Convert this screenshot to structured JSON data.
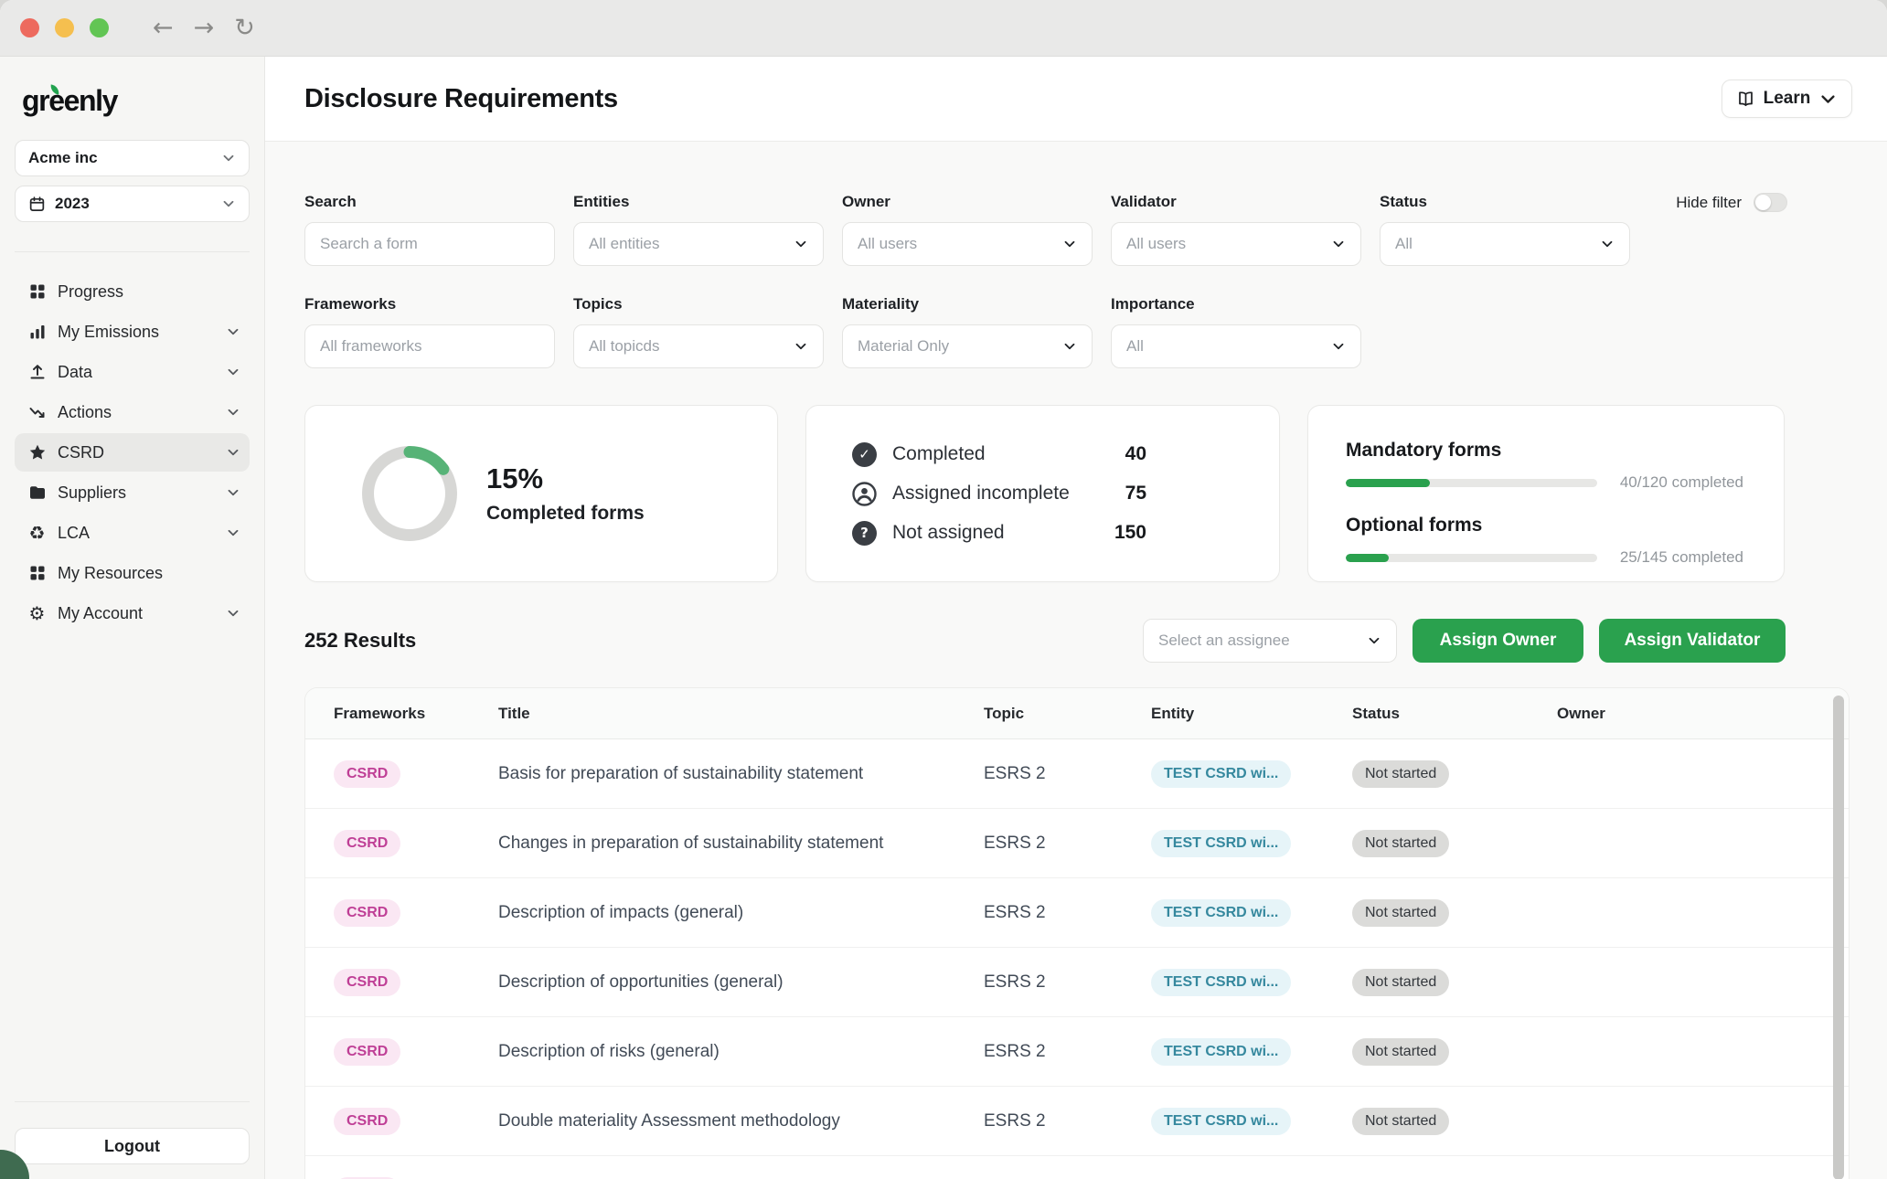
{
  "window_chrome": {
    "traffic_lights": [
      "close",
      "minimize",
      "zoom"
    ],
    "nav": {
      "back": "←",
      "forward": "→",
      "reload": "↻"
    }
  },
  "sidebar": {
    "logo_text": "greenly",
    "org_selector": {
      "value": "Acme inc"
    },
    "period_selector": {
      "value": "2023"
    },
    "nav_items": [
      {
        "label": "Progress",
        "icon": "grid-icon",
        "chevron": false,
        "active": false
      },
      {
        "label": "My Emissions",
        "icon": "bar-chart-icon",
        "chevron": true,
        "active": false
      },
      {
        "label": "Data",
        "icon": "upload-icon",
        "chevron": true,
        "active": false
      },
      {
        "label": "Actions",
        "icon": "trend-icon",
        "chevron": true,
        "active": false
      },
      {
        "label": "CSRD",
        "icon": "star-icon",
        "chevron": true,
        "active": true
      },
      {
        "label": "Suppliers",
        "icon": "folder-icon",
        "chevron": true,
        "active": false
      },
      {
        "label": "LCA",
        "icon": "recycle-icon",
        "chevron": true,
        "active": false
      },
      {
        "label": "My Resources",
        "icon": "grid-icon",
        "chevron": false,
        "active": false
      },
      {
        "label": "My Account",
        "icon": "gear-icon",
        "chevron": true,
        "active": false
      }
    ],
    "logout_label": "Logout"
  },
  "header": {
    "title": "Disclosure Requirements",
    "learn_button": "Learn"
  },
  "filters": {
    "hide_filter": {
      "label": "Hide filter",
      "enabled": false
    },
    "fields": [
      {
        "label": "Search",
        "placeholder": "Search a form",
        "type": "text"
      },
      {
        "label": "Entities",
        "placeholder": "All entities",
        "type": "select"
      },
      {
        "label": "Owner",
        "placeholder": "All users",
        "type": "select"
      },
      {
        "label": "Validator",
        "placeholder": "All users",
        "type": "select"
      },
      {
        "label": "Status",
        "placeholder": "All",
        "type": "select"
      },
      {
        "label": "Frameworks",
        "placeholder": "All frameworks",
        "type": "text"
      },
      {
        "label": "Topics",
        "placeholder": "All topicds",
        "type": "select"
      },
      {
        "label": "Materiality",
        "placeholder": "Material Only",
        "type": "select"
      },
      {
        "label": "Importance",
        "placeholder": "All",
        "type": "select"
      }
    ]
  },
  "stats": {
    "completion": {
      "percent": 15,
      "percent_label": "15%",
      "caption": "Completed forms"
    },
    "assignment_rows": [
      {
        "icon": "check-circle-icon",
        "label": "Completed",
        "value": "40"
      },
      {
        "icon": "person-circle-icon",
        "label": "Assigned incomplete",
        "value": "75"
      },
      {
        "icon": "question-circle-icon",
        "label": "Not assigned",
        "value": "150"
      }
    ],
    "form_progress": [
      {
        "title": "Mandatory forms",
        "percent": 33.3,
        "caption": "40/120 completed"
      },
      {
        "title": "Optional forms",
        "percent": 17.2,
        "caption": "25/145 completed"
      }
    ]
  },
  "results": {
    "count_label": "252 Results",
    "assignee_placeholder": "Select an assignee",
    "assign_owner_label": "Assign Owner",
    "assign_validator_label": "Assign Validator"
  },
  "table": {
    "columns": [
      "Frameworks",
      "Title",
      "Topic",
      "Entity",
      "Status",
      "Owner"
    ],
    "rows": [
      {
        "framework": "CSRD",
        "title": "Basis for preparation of sustainability statement",
        "topic": "ESRS 2",
        "entity": "TEST CSRD wi...",
        "status": "Not started",
        "owner": ""
      },
      {
        "framework": "CSRD",
        "title": "Changes in preparation of sustainability statement",
        "topic": "ESRS 2",
        "entity": "TEST CSRD wi...",
        "status": "Not started",
        "owner": ""
      },
      {
        "framework": "CSRD",
        "title": "Description of impacts (general)",
        "topic": "ESRS 2",
        "entity": "TEST CSRD wi...",
        "status": "Not started",
        "owner": ""
      },
      {
        "framework": "CSRD",
        "title": "Description of opportunities (general)",
        "topic": "ESRS 2",
        "entity": "TEST CSRD wi...",
        "status": "Not started",
        "owner": ""
      },
      {
        "framework": "CSRD",
        "title": "Description of risks (general)",
        "topic": "ESRS 2",
        "entity": "TEST CSRD wi...",
        "status": "Not started",
        "owner": ""
      },
      {
        "framework": "CSRD",
        "title": "Double materiality Assessment methodology",
        "topic": "ESRS 2",
        "entity": "TEST CSRD wi...",
        "status": "Not started",
        "owner": ""
      },
      {
        "framework": "CSRD",
        "title": "",
        "topic": "",
        "entity": "",
        "status": "",
        "owner": "",
        "partial": true
      }
    ]
  },
  "colors": {
    "brand_green": "#2aa14e",
    "donut_green": "#57b377",
    "donut_track": "#d7d7d5",
    "framework_pill_bg": "#fae7f3",
    "framework_pill_text": "#bf3f96",
    "entity_pill_bg": "#e6f4f8",
    "entity_pill_text": "#35889e",
    "status_pill_bg": "#dbdbd9"
  }
}
